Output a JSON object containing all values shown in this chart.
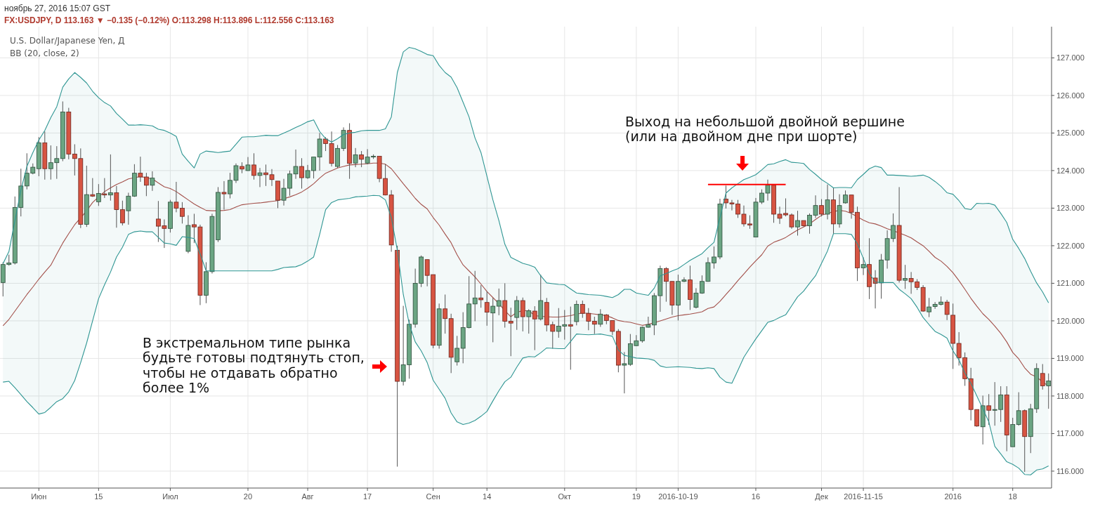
{
  "chart_data": {
    "type": "candlestick",
    "title": "ноябрь 27, 2016 15:07 GST",
    "subtitle": "FX:USDJPY, D 113.163 ▼ −0.135 (−0.12%) O:113.298 H:113.896 L:112.556 C:113.163",
    "annotations": [
      "U.S. Dollar/Japanese Yen, Д",
      "BB (20, close, 2)",
      "В экстремальном типе рынка\nбудьте готовы подтянуть стоп,\nчтобы не отдавать обратно\nболее 1%",
      "Выход на небольшой двойной вершине\n(или на двойном дне при шорте)"
    ],
    "categories": [
      null,
      null,
      null,
      null,
      null,
      null,
      "Июн",
      null,
      null,
      null,
      null,
      null,
      null,
      null,
      null,
      null,
      "15",
      null,
      null,
      null,
      null,
      null,
      null,
      null,
      null,
      null,
      null,
      null,
      "Июл",
      null,
      null,
      null,
      null,
      null,
      null,
      null,
      null,
      null,
      null,
      null,
      null,
      "20",
      null,
      null,
      null,
      null,
      null,
      null,
      null,
      null,
      null,
      "Авг",
      null,
      null,
      null,
      null,
      null,
      null,
      null,
      null,
      null,
      "17",
      null,
      null,
      null,
      null,
      null,
      null,
      null,
      null,
      null,
      null,
      "Сен",
      null,
      null,
      null,
      null,
      null,
      null,
      null,
      null,
      "14",
      null,
      null,
      null,
      null,
      null,
      null,
      null,
      null,
      null,
      null,
      null,
      null,
      "Окт",
      null,
      null,
      null,
      null,
      null,
      null,
      null,
      null,
      null,
      null,
      null,
      "19",
      null,
      null,
      null,
      null,
      null,
      null,
      "2016-10-19",
      null,
      null,
      null,
      null,
      null,
      null,
      null,
      null,
      null,
      null,
      null,
      null,
      "16",
      null,
      null,
      null,
      null,
      null,
      null,
      null,
      null,
      null,
      null,
      "Дек",
      null,
      null,
      null,
      null,
      null,
      null,
      "2016-11-15",
      null,
      null,
      null,
      null,
      null,
      null,
      null,
      null,
      null,
      null,
      null,
      null,
      null,
      null,
      "2016",
      null,
      null,
      null,
      null,
      null,
      null,
      null,
      null,
      null,
      "18",
      null,
      null,
      null,
      null,
      null,
      null
    ],
    "ohlc": [
      [
        121.02,
        121.56,
        120.65,
        121.5
      ],
      [
        121.5,
        121.76,
        121.47,
        121.54
      ],
      [
        121.54,
        123.31,
        121.5,
        123.02
      ],
      [
        123.02,
        124.05,
        122.78,
        123.59
      ],
      [
        123.59,
        124.46,
        123.5,
        123.93
      ],
      [
        123.93,
        124.19,
        123.9,
        124.09
      ],
      [
        124.05,
        124.89,
        123.85,
        124.74
      ],
      [
        124.74,
        125.04,
        123.76,
        124.05
      ],
      [
        124.05,
        124.67,
        123.76,
        124.21
      ],
      [
        124.21,
        124.65,
        123.78,
        124.32
      ],
      [
        124.32,
        125.84,
        124.25,
        125.56
      ],
      [
        125.56,
        125.67,
        124.3,
        124.44
      ],
      [
        124.44,
        124.7,
        123.87,
        124.32
      ],
      [
        124.32,
        124.59,
        122.47,
        122.57
      ],
      [
        122.57,
        124.13,
        122.5,
        123.36
      ],
      [
        123.36,
        123.8,
        123.3,
        123.32
      ],
      [
        123.17,
        123.64,
        123.06,
        123.39
      ],
      [
        123.38,
        123.8,
        123.27,
        123.35
      ],
      [
        123.35,
        124.43,
        123.2,
        123.41
      ],
      [
        123.41,
        123.59,
        122.48,
        122.96
      ],
      [
        122.96,
        123.2,
        122.54,
        122.61
      ],
      [
        122.93,
        123.41,
        122.56,
        123.32
      ],
      [
        123.32,
        124.17,
        123.3,
        123.93
      ],
      [
        123.93,
        124.37,
        123.7,
        123.83
      ],
      [
        123.83,
        123.94,
        123.32,
        123.61
      ],
      [
        123.61,
        123.98,
        123.46,
        123.8
      ],
      [
        122.71,
        123.19,
        122.1,
        122.52
      ],
      [
        122.53,
        122.7,
        121.94,
        122.46
      ],
      [
        122.46,
        123.22,
        122.35,
        123.16
      ],
      [
        123.16,
        123.7,
        122.89,
        123.0
      ],
      [
        123.0,
        123.16,
        122.59,
        122.78
      ],
      [
        121.85,
        122.81,
        121.8,
        122.54
      ],
      [
        122.56,
        122.85,
        122.07,
        122.5
      ],
      [
        122.5,
        122.56,
        120.42,
        120.68
      ],
      [
        120.68,
        121.56,
        120.47,
        121.31
      ],
      [
        121.31,
        122.85,
        121.26,
        122.78
      ],
      [
        122.16,
        123.56,
        122.1,
        123.42
      ],
      [
        123.42,
        123.72,
        122.96,
        123.38
      ],
      [
        123.38,
        123.94,
        123.26,
        123.74
      ],
      [
        123.74,
        124.19,
        123.67,
        124.13
      ],
      [
        124.11,
        124.22,
        123.93,
        124.04
      ],
      [
        124.0,
        124.36,
        123.99,
        124.15
      ],
      [
        124.15,
        124.46,
        123.76,
        123.87
      ],
      [
        123.87,
        124.07,
        123.56,
        123.94
      ],
      [
        123.94,
        124.16,
        123.59,
        123.89
      ],
      [
        123.89,
        124.04,
        123.59,
        123.76
      ],
      [
        123.72,
        123.72,
        123.0,
        123.21
      ],
      [
        123.21,
        123.78,
        123.07,
        123.53
      ],
      [
        123.53,
        124.0,
        123.33,
        123.91
      ],
      [
        123.91,
        124.56,
        123.78,
        124.11
      ],
      [
        124.11,
        124.33,
        123.52,
        123.81
      ],
      [
        123.81,
        124.15,
        123.78,
        124.0
      ],
      [
        124.0,
        124.36,
        123.79,
        124.36
      ],
      [
        124.36,
        125.0,
        124.0,
        124.84
      ],
      [
        124.84,
        124.89,
        124.52,
        124.72
      ],
      [
        124.72,
        125.04,
        124.11,
        124.19
      ],
      [
        124.11,
        124.68,
        124.07,
        124.59
      ],
      [
        124.59,
        125.15,
        124.52,
        125.07
      ],
      [
        125.07,
        125.26,
        123.78,
        124.19
      ],
      [
        124.2,
        124.6,
        124.09,
        124.42
      ],
      [
        124.42,
        124.52,
        124.09,
        124.3
      ],
      [
        124.2,
        124.57,
        124.17,
        124.36
      ],
      [
        124.36,
        124.43,
        124.31,
        124.38
      ],
      [
        124.38,
        124.38,
        123.69,
        123.79
      ],
      [
        123.79,
        124.17,
        123.34,
        123.35
      ],
      [
        123.35,
        123.48,
        121.84,
        122.02
      ],
      [
        121.88,
        122.0,
        116.12,
        118.39
      ],
      [
        118.39,
        120.4,
        118.28,
        118.83
      ],
      [
        118.83,
        120.03,
        118.46,
        119.91
      ],
      [
        119.91,
        121.39,
        119.82,
        121.0
      ],
      [
        121.0,
        121.74,
        120.9,
        121.7
      ],
      [
        121.63,
        121.63,
        120.92,
        121.21
      ],
      [
        121.23,
        121.23,
        119.27,
        119.35
      ],
      [
        119.35,
        120.46,
        119.26,
        120.32
      ],
      [
        120.32,
        120.7,
        119.66,
        120.06
      ],
      [
        120.06,
        120.19,
        118.61,
        119.03
      ],
      [
        118.91,
        119.6,
        118.81,
        119.27
      ],
      [
        119.27,
        120.23,
        118.87,
        119.82
      ],
      [
        119.82,
        121.19,
        119.8,
        120.45
      ],
      [
        120.45,
        121.33,
        119.99,
        120.61
      ],
      [
        120.61,
        120.95,
        120.35,
        120.56
      ],
      [
        120.49,
        120.78,
        119.87,
        120.23
      ],
      [
        120.21,
        120.61,
        119.43,
        120.39
      ],
      [
        120.39,
        120.86,
        120.15,
        120.54
      ],
      [
        120.54,
        121.0,
        119.82,
        119.99
      ],
      [
        119.99,
        120.35,
        119.06,
        119.94
      ],
      [
        120.09,
        120.66,
        119.76,
        120.54
      ],
      [
        120.54,
        120.62,
        119.72,
        120.11
      ],
      [
        120.11,
        120.31,
        119.66,
        120.27
      ],
      [
        120.26,
        120.39,
        119.22,
        120.05
      ],
      [
        120.05,
        121.23,
        120.01,
        120.54
      ],
      [
        120.49,
        120.61,
        119.72,
        119.89
      ],
      [
        119.9,
        119.98,
        119.26,
        119.72
      ],
      [
        119.72,
        120.34,
        119.55,
        119.86
      ],
      [
        119.86,
        120.29,
        119.5,
        119.9
      ],
      [
        119.9,
        120.38,
        118.7,
        119.86
      ],
      [
        119.98,
        120.54,
        119.88,
        120.44
      ],
      [
        120.44,
        120.54,
        120.08,
        120.2
      ],
      [
        120.2,
        120.34,
        119.75,
        119.99
      ],
      [
        119.99,
        120.11,
        119.65,
        119.91
      ],
      [
        119.91,
        120.31,
        119.84,
        120.18
      ],
      [
        120.16,
        120.18,
        119.91,
        120.01
      ],
      [
        120.01,
        120.01,
        119.62,
        119.72
      ],
      [
        119.72,
        119.78,
        118.63,
        118.82
      ],
      [
        118.82,
        119.17,
        118.07,
        118.86
      ],
      [
        118.84,
        119.65,
        118.8,
        119.39
      ],
      [
        119.34,
        119.62,
        119.33,
        119.47
      ],
      [
        119.47,
        119.85,
        119.42,
        119.83
      ],
      [
        119.83,
        120.11,
        119.82,
        119.9
      ],
      [
        119.89,
        120.74,
        119.62,
        120.67
      ],
      [
        120.67,
        121.47,
        120.24,
        121.39
      ],
      [
        121.39,
        121.43,
        120.51,
        121.05
      ],
      [
        121.05,
        121.05,
        120.16,
        120.42
      ],
      [
        120.42,
        121.23,
        120.01,
        121.05
      ],
      [
        121.05,
        121.16,
        121.03,
        121.09
      ],
      [
        121.09,
        121.47,
        120.29,
        120.57
      ],
      [
        120.36,
        120.87,
        120.33,
        120.74
      ],
      [
        120.74,
        121.21,
        120.72,
        121.05
      ],
      [
        121.05,
        121.69,
        121.04,
        121.55
      ],
      [
        121.54,
        121.98,
        121.39,
        121.7
      ],
      [
        121.7,
        123.25,
        121.64,
        123.11
      ],
      [
        123.24,
        123.6,
        122.99,
        123.14
      ],
      [
        123.14,
        123.22,
        122.94,
        123.11
      ],
      [
        123.11,
        123.22,
        122.74,
        122.84
      ],
      [
        122.84,
        123.07,
        122.51,
        122.58
      ],
      [
        122.58,
        122.81,
        122.45,
        122.55
      ],
      [
        122.23,
        123.27,
        122.23,
        123.16
      ],
      [
        123.16,
        123.5,
        123.11,
        123.4
      ],
      [
        123.4,
        123.76,
        123.2,
        123.61
      ],
      [
        123.61,
        123.61,
        122.61,
        122.84
      ],
      [
        122.84,
        123.04,
        122.58,
        122.73
      ],
      [
        122.86,
        123.26,
        122.78,
        122.82
      ],
      [
        122.82,
        122.86,
        122.45,
        122.5
      ],
      [
        122.5,
        122.93,
        122.27,
        122.67
      ],
      [
        122.67,
        122.67,
        122.51,
        122.53
      ],
      [
        122.53,
        122.86,
        122.32,
        122.81
      ],
      [
        122.81,
        123.34,
        122.74,
        123.07
      ],
      [
        123.07,
        123.24,
        122.78,
        122.84
      ],
      [
        122.84,
        123.63,
        122.7,
        123.22
      ],
      [
        123.22,
        123.55,
        122.32,
        122.58
      ],
      [
        122.58,
        123.37,
        122.48,
        123.07
      ],
      [
        123.14,
        123.47,
        123.12,
        123.35
      ],
      [
        123.35,
        123.35,
        122.72,
        122.89
      ],
      [
        122.89,
        123.04,
        121.06,
        121.41
      ],
      [
        121.41,
        121.69,
        121.22,
        121.5
      ],
      [
        121.5,
        122.2,
        120.58,
        120.91
      ],
      [
        121.14,
        121.35,
        120.33,
        121.0
      ],
      [
        121.01,
        121.78,
        120.59,
        121.62
      ],
      [
        121.62,
        122.41,
        121.39,
        122.19
      ],
      [
        122.19,
        122.86,
        122.1,
        122.54
      ],
      [
        122.54,
        123.56,
        121.02,
        121.08
      ],
      [
        121.08,
        121.49,
        120.85,
        121.13
      ],
      [
        121.13,
        121.3,
        120.72,
        121.04
      ],
      [
        121.04,
        121.11,
        120.82,
        120.89
      ],
      [
        120.89,
        120.95,
        120.24,
        120.26
      ],
      [
        120.24,
        120.61,
        120.1,
        120.37
      ],
      [
        120.38,
        120.5,
        120.32,
        120.44
      ],
      [
        120.44,
        120.65,
        120.41,
        120.5
      ],
      [
        120.5,
        120.56,
        120.02,
        120.17
      ],
      [
        120.15,
        120.46,
        118.72,
        119.4
      ],
      [
        119.4,
        119.7,
        118.81,
        119.02
      ],
      [
        119.02,
        119.16,
        118.27,
        118.46
      ],
      [
        118.46,
        118.75,
        117.35,
        117.64
      ],
      [
        117.64,
        117.64,
        117.18,
        117.2
      ],
      [
        117.18,
        118.01,
        116.71,
        117.74
      ],
      [
        117.74,
        118.05,
        117.23,
        117.62
      ],
      [
        117.62,
        118.37,
        117.21,
        117.64
      ],
      [
        117.64,
        118.26,
        117.31,
        118.03
      ],
      [
        118.03,
        118.26,
        116.53,
        116.96
      ],
      [
        116.65,
        117.42,
        116.65,
        117.24
      ],
      [
        117.24,
        118.1,
        117.21,
        117.61
      ],
      [
        117.61,
        117.64,
        115.98,
        116.92
      ],
      [
        116.92,
        117.79,
        116.48,
        117.66
      ],
      [
        117.66,
        118.87,
        117.55,
        118.73
      ],
      [
        118.6,
        118.85,
        118.17,
        118.27
      ],
      [
        118.27,
        118.6,
        117.66,
        118.4
      ]
    ],
    "series": [
      {
        "type": "line",
        "color": "#2f9693",
        "values": [
          121.52,
          121.85,
          122.67,
          123.48,
          124.11,
          124.48,
          124.81,
          125.07,
          125.41,
          125.7,
          126.22,
          126.44,
          126.61,
          126.48,
          126.33,
          126.11,
          125.94,
          125.81,
          125.72,
          125.52,
          125.37,
          125.21,
          125.21,
          125.22,
          125.21,
          125.19,
          125.1,
          125.07,
          125.0,
          124.91,
          124.44,
          124.25,
          124.07,
          124.44,
          124.52,
          124.5,
          124.48,
          124.5,
          124.52,
          124.7,
          124.89,
          124.9,
          124.9,
          124.92,
          124.94,
          124.93,
          124.93,
          125.0,
          125.07,
          125.15,
          125.22,
          125.3,
          125.35,
          125.04,
          124.85,
          124.76,
          124.85,
          124.96,
          125.0,
          125.02,
          125.06,
          125.07,
          125.07,
          125.07,
          125.11,
          125.43,
          126.61,
          127.16,
          127.28,
          127.24,
          127.17,
          127.09,
          127.06,
          126.8,
          126.61,
          126.49,
          126.21,
          125.82,
          125.43,
          124.87,
          124.48,
          123.85,
          123.22,
          122.67,
          122.04,
          121.69,
          121.61,
          121.53,
          121.49,
          121.43,
          121.2,
          121.01,
          120.99,
          120.97,
          120.96,
          120.85,
          120.74,
          120.72,
          120.7,
          120.69,
          120.68,
          120.65,
          120.62,
          120.7,
          120.84,
          120.84,
          120.74,
          120.71,
          120.68,
          120.87,
          121.2,
          121.26,
          121.33,
          121.39,
          121.5,
          121.61,
          121.7,
          121.79,
          121.95,
          122.09,
          122.75,
          123.4,
          123.54,
          123.65,
          123.76,
          123.82,
          123.89,
          124.02,
          124.16,
          124.18,
          124.24,
          124.29,
          124.22,
          124.21,
          124.19,
          124.03,
          123.9,
          123.76,
          123.66,
          123.54,
          123.55,
          123.55,
          123.54,
          123.76,
          123.9,
          124.05,
          124.12,
          124.08,
          123.88,
          123.88,
          123.87,
          123.86,
          123.85,
          123.86,
          123.88,
          123.82,
          123.71,
          123.58,
          123.41,
          123.37,
          123.2,
          122.99,
          122.96,
          123.13,
          123.12,
          123.13,
          123.08,
          122.86,
          122.62,
          122.17,
          121.93,
          121.66,
          121.32,
          121.01,
          120.77,
          120.48
        ]
      },
      {
        "type": "line",
        "color": "#2f9693",
        "values": [
          118.37,
          118.39,
          118.22,
          118.04,
          117.85,
          117.69,
          117.52,
          117.56,
          117.7,
          117.85,
          117.93,
          118.11,
          118.41,
          118.89,
          119.41,
          120.0,
          120.59,
          120.96,
          121.3,
          121.7,
          121.96,
          122.3,
          122.37,
          122.39,
          122.37,
          122.37,
          122.22,
          122.07,
          122.05,
          122.01,
          122.24,
          122.22,
          122.19,
          121.78,
          121.33,
          121.33,
          121.33,
          121.33,
          121.33,
          121.33,
          121.33,
          121.33,
          121.33,
          121.33,
          121.33,
          121.33,
          121.37,
          121.42,
          121.43,
          121.44,
          121.5,
          121.59,
          121.7,
          122.3,
          122.96,
          123.15,
          123.22,
          123.24,
          123.26,
          123.3,
          123.31,
          123.32,
          123.34,
          123.33,
          123.22,
          122.75,
          121.88,
          120.7,
          119.91,
          119.44,
          119.2,
          118.89,
          118.42,
          118.18,
          117.94,
          117.55,
          117.31,
          117.24,
          117.28,
          117.35,
          117.46,
          117.59,
          117.87,
          118.14,
          118.38,
          118.5,
          118.77,
          119.01,
          119.05,
          119.04,
          119.15,
          119.28,
          119.27,
          119.26,
          119.26,
          119.45,
          119.65,
          119.64,
          119.63,
          119.64,
          119.65,
          119.62,
          119.59,
          119.22,
          119.08,
          119.05,
          119.01,
          119.0,
          118.99,
          118.95,
          118.8,
          118.76,
          118.77,
          118.78,
          118.77,
          118.76,
          118.74,
          118.73,
          118.75,
          118.73,
          118.5,
          118.37,
          118.34,
          118.68,
          119.03,
          119.28,
          119.52,
          119.74,
          119.96,
          120.01,
          120.09,
          120.16,
          120.4,
          120.64,
          120.79,
          121.0,
          121.2,
          121.53,
          121.86,
          122.32,
          122.32,
          122.32,
          122.3,
          122.05,
          121.66,
          121.26,
          121.03,
          121.02,
          121.02,
          121.02,
          120.84,
          120.72,
          120.59,
          120.36,
          120.09,
          119.9,
          119.72,
          119.64,
          119.54,
          119.2,
          118.96,
          118.61,
          118.34,
          118.0,
          117.66,
          117.31,
          116.66,
          116.46,
          116.25,
          116.18,
          116.08,
          115.91,
          115.9,
          116.03,
          116.06,
          116.14
        ]
      },
      {
        "type": "line",
        "color": "#ff0000",
        "values": [
          null,
          null,
          null,
          null,
          null,
          null,
          null,
          null,
          null,
          null,
          null,
          null,
          null,
          null,
          null,
          null,
          null,
          null,
          null,
          null,
          null,
          null,
          null,
          null,
          null,
          null,
          null,
          null,
          null,
          null,
          null,
          null,
          null,
          null,
          null,
          null,
          null,
          null,
          null,
          null,
          null,
          null,
          null,
          null,
          null,
          null,
          null,
          null,
          null,
          null,
          null,
          null,
          null,
          null,
          null,
          null,
          null,
          null,
          null,
          null,
          null,
          null,
          null,
          null,
          null,
          null,
          null,
          null,
          null,
          null,
          null,
          null,
          null,
          null,
          null,
          null,
          null,
          null,
          null,
          null,
          null,
          null,
          null,
          null,
          null,
          null,
          null,
          null,
          null,
          null,
          null,
          null,
          null,
          null,
          null,
          null,
          null,
          null,
          null,
          null,
          null,
          null,
          null,
          null,
          null,
          null,
          null,
          null,
          null,
          null,
          null,
          null,
          null,
          null,
          null,
          null,
          null,
          null,
          123.63,
          123.63,
          123.63,
          123.63,
          123.63,
          123.63,
          123.63,
          123.63,
          123.63,
          123.63,
          123.63,
          123.63,
          123.63,
          123.63,
          null,
          null,
          null,
          null,
          null,
          null,
          null,
          null,
          null,
          null,
          null,
          null,
          null,
          null,
          null,
          null,
          null,
          null,
          null,
          null,
          null,
          null,
          null,
          null,
          null,
          null,
          null,
          null,
          null,
          null,
          null,
          null,
          null,
          null,
          null,
          null,
          null,
          null,
          null,
          null,
          null,
          null,
          null,
          null
        ]
      },
      {
        "type": "line",
        "color": "#a3504a",
        "values": [
          119.87,
          120.04,
          120.26,
          120.48,
          120.7,
          120.9,
          121.11,
          121.3,
          121.48,
          121.78,
          122.07,
          122.32,
          122.56,
          122.74,
          122.93,
          123.15,
          123.3,
          123.44,
          123.54,
          123.63,
          123.7,
          123.78,
          123.81,
          123.84,
          123.81,
          123.78,
          123.67,
          123.57,
          123.52,
          123.44,
          123.33,
          123.22,
          123.11,
          123.02,
          122.94,
          122.93,
          122.93,
          122.94,
          122.96,
          123.03,
          123.09,
          123.11,
          123.13,
          123.14,
          123.16,
          123.18,
          123.2,
          123.25,
          123.3,
          123.36,
          123.43,
          123.53,
          123.65,
          123.8,
          123.93,
          124.0,
          124.07,
          124.11,
          124.15,
          124.16,
          124.17,
          124.18,
          124.2,
          124.2,
          124.17,
          124.05,
          123.85,
          123.65,
          123.46,
          123.26,
          123.1,
          122.98,
          122.75,
          122.55,
          122.31,
          122.08,
          121.76,
          121.49,
          121.33,
          121.17,
          120.98,
          120.78,
          120.62,
          120.46,
          120.27,
          120.11,
          120.23,
          120.27,
          120.27,
          120.14,
          120.12,
          120.11,
          120.1,
          120.1,
          120.12,
          120.14,
          120.18,
          120.21,
          120.2,
          120.18,
          120.16,
          120.14,
          120.08,
          120.01,
          119.98,
          119.96,
          119.92,
          119.88,
          119.91,
          119.95,
          120.0,
          120.05,
          120.1,
          120.14,
          120.16,
          120.18,
          120.21,
          120.24,
          120.33,
          120.37,
          120.52,
          120.7,
          120.88,
          121.07,
          121.25,
          121.43,
          121.6,
          121.76,
          121.99,
          122.09,
          122.15,
          122.22,
          122.32,
          122.42,
          122.5,
          122.58,
          122.7,
          122.81,
          122.86,
          122.91,
          122.94,
          122.92,
          122.86,
          122.77,
          122.68,
          122.61,
          122.58,
          122.52,
          122.45,
          122.4,
          122.34,
          122.28,
          122.21,
          122.1,
          122.0,
          121.85,
          121.69,
          121.59,
          121.45,
          121.28,
          121.07,
          120.84,
          120.6,
          120.39,
          120.19,
          120.04,
          119.86,
          119.67,
          119.44,
          119.16,
          118.99,
          118.75,
          118.58,
          118.51,
          118.37,
          118.27
        ],
        "upper": [
          121.52,
          121.85,
          122.67,
          123.48,
          124.11,
          124.48,
          124.81,
          125.07,
          125.41,
          125.7,
          126.22,
          126.44,
          126.61,
          126.48,
          126.33,
          126.11,
          125.94,
          125.81,
          125.72,
          125.52,
          125.37,
          125.21,
          125.21,
          125.22,
          125.21,
          125.19,
          125.1,
          125.07,
          125.0,
          124.91,
          124.44,
          124.25,
          124.07,
          124.44,
          124.52,
          124.5,
          124.48,
          124.5,
          124.52,
          124.7,
          124.89,
          124.9,
          124.9,
          124.92,
          124.94,
          124.93,
          124.93,
          125.0,
          125.07,
          125.15,
          125.22,
          125.3,
          125.35,
          125.04,
          124.85,
          124.76,
          124.85,
          124.96,
          125.0,
          125.02,
          125.06,
          125.07,
          125.07,
          125.07,
          125.11,
          125.43,
          126.61,
          127.16,
          127.28,
          127.24,
          127.17,
          127.09,
          127.06,
          126.8,
          126.61,
          126.49,
          126.21,
          125.82,
          125.43,
          124.87,
          124.48,
          123.85,
          123.22,
          122.67,
          122.04,
          121.69,
          121.61,
          121.53,
          121.49,
          121.43,
          121.2,
          121.01,
          120.99,
          120.97,
          120.96,
          120.85,
          120.74,
          120.72,
          120.7,
          120.69,
          120.68,
          120.65,
          120.62,
          120.7,
          120.84,
          120.84,
          120.74,
          120.71,
          120.68,
          120.87,
          121.2,
          121.26,
          121.33,
          121.39,
          121.5,
          121.61,
          121.7,
          121.79,
          121.95,
          122.09,
          122.75,
          123.4,
          123.54,
          123.65,
          123.76,
          123.82,
          123.89,
          124.02,
          124.16,
          124.18,
          124.24,
          124.29,
          124.22,
          124.21,
          124.19,
          124.03,
          123.9,
          123.76,
          123.66,
          123.54,
          123.55,
          123.55,
          123.54,
          123.76,
          123.9,
          124.05,
          124.12,
          124.08,
          123.88,
          123.88,
          123.87,
          123.86,
          123.85,
          123.86,
          123.88,
          123.82,
          123.71,
          123.58,
          123.41,
          123.37,
          123.2,
          122.99,
          122.96,
          123.13,
          123.12,
          123.13,
          123.08,
          122.86,
          122.62,
          122.17,
          121.93,
          121.66,
          121.32,
          121.01,
          120.77,
          120.48
        ],
        "lower": [
          118.37,
          118.39,
          118.22,
          118.04,
          117.85,
          117.69,
          117.52,
          117.56,
          117.7,
          117.85,
          117.93,
          118.11,
          118.41,
          118.89,
          119.41,
          120.0,
          120.59,
          120.96,
          121.3,
          121.7,
          121.96,
          122.3,
          122.37,
          122.39,
          122.37,
          122.37,
          122.22,
          122.07,
          122.05,
          122.01,
          122.24,
          122.22,
          122.19,
          121.78,
          121.33,
          121.33,
          121.33,
          121.33,
          121.33,
          121.33,
          121.33,
          121.33,
          121.33,
          121.33,
          121.33,
          121.33,
          121.37,
          121.42,
          121.43,
          121.44,
          121.5,
          121.59,
          121.7,
          122.3,
          122.96,
          123.15,
          123.22,
          123.24,
          123.26,
          123.3,
          123.31,
          123.32,
          123.34,
          123.33,
          123.22,
          122.75,
          121.88,
          120.7,
          119.91,
          119.44,
          119.2,
          118.89,
          118.42,
          118.18,
          117.94,
          117.55,
          117.31,
          117.24,
          117.28,
          117.35,
          117.46,
          117.59,
          117.87,
          118.14,
          118.38,
          118.5,
          118.77,
          119.01,
          119.05,
          119.04,
          119.15,
          119.28,
          119.27,
          119.26,
          119.26,
          119.45,
          119.65,
          119.64,
          119.63,
          119.64,
          119.65,
          119.62,
          119.59,
          119.22,
          119.08,
          119.05,
          119.01,
          119.0,
          118.99,
          118.95,
          118.8,
          118.76,
          118.77,
          118.78,
          118.77,
          118.76,
          118.74,
          118.73,
          118.75,
          118.73,
          118.5,
          118.37,
          118.34,
          118.68,
          119.03,
          119.28,
          119.52,
          119.74,
          119.96,
          120.01,
          120.09,
          120.16,
          120.4,
          120.64,
          120.79,
          121.0,
          121.2,
          121.53,
          121.86,
          122.32,
          122.32,
          122.32,
          122.3,
          122.05,
          121.66,
          121.26,
          121.03,
          121.02,
          121.02,
          121.02,
          120.84,
          120.72,
          120.59,
          120.36,
          120.09,
          119.9,
          119.72,
          119.64,
          119.54,
          119.2,
          118.96,
          118.61,
          118.34,
          118.0,
          117.66,
          117.31,
          116.66,
          116.46,
          116.25,
          116.18,
          116.08,
          115.91,
          115.9,
          116.03,
          116.06,
          116.14
        ]
      }
    ],
    "ylim": [
      115.55,
      127.83
    ],
    "yticks": [
      {
        "value": 116,
        "label": "116.000"
      },
      {
        "value": 117,
        "label": "117.000"
      },
      {
        "value": 118,
        "label": "118.000"
      },
      {
        "value": 119,
        "label": "119.000"
      },
      {
        "value": 120,
        "label": "120.000"
      },
      {
        "value": 121,
        "label": "121.000"
      },
      {
        "value": 122,
        "label": "122.000"
      },
      {
        "value": 123,
        "label": "123.000"
      },
      {
        "value": 124,
        "label": "124.000"
      },
      {
        "value": 125,
        "label": "125.000"
      },
      {
        "value": 126,
        "label": "126.000"
      },
      {
        "value": 127,
        "label": "127.000"
      }
    ],
    "grid": true
  }
}
